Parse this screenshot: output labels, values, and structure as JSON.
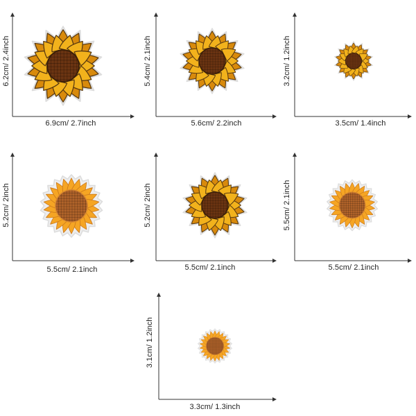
{
  "patches": [
    {
      "width_label": "6.9cm/ 2.7inch",
      "height_label": "6.2cm/ 2.4inch",
      "style": "pointed"
    },
    {
      "width_label": "5.6cm/ 2.2inch",
      "height_label": "5.4cm/ 2.1inch",
      "style": "pointed"
    },
    {
      "width_label": "3.5cm/ 1.4inch",
      "height_label": "3.2cm/ 1.2inch",
      "style": "pointed"
    },
    {
      "width_label": "5.5cm/ 2.1inch",
      "height_label": "5.2cm/ 2inch",
      "style": "round"
    },
    {
      "width_label": "5.5cm/ 2.1inch",
      "height_label": "5.2cm/ 2inch",
      "style": "pointed"
    },
    {
      "width_label": "5.5cm/ 2.1inch",
      "height_label": "5.5cm/ 2.1inch",
      "style": "round"
    },
    {
      "width_label": "3.3cm/ 1.3inch",
      "height_label": "3.1cm/ 1.2inch",
      "style": "round"
    }
  ],
  "colors": {
    "axis": "#333333",
    "petal": "#f2b21c",
    "petal_dark": "#d88a0c",
    "petal_round": "#f5a524",
    "outline": "#5a3a10",
    "center": "#6b3412",
    "center_round": "#b0632a",
    "felt": "#ededed"
  }
}
